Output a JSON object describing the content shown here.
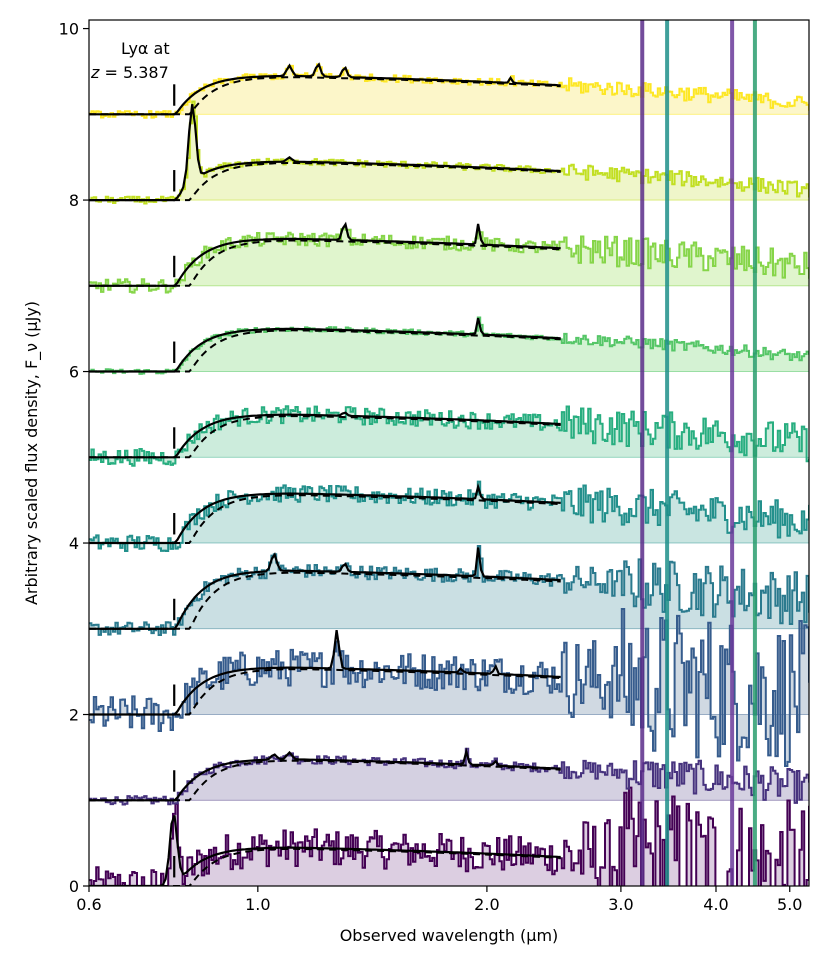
{
  "chart_data": {
    "type": "line",
    "title": "",
    "xlabel": "Observed wavelength (μm)",
    "ylabel": "Arbitrary scaled flux density, F_ν (μJy)",
    "xscale": "log",
    "xlim": [
      0.6,
      5.3
    ],
    "ylim": [
      0,
      10.1
    ],
    "xticks": [
      {
        "value": 0.6,
        "label": "0.6"
      },
      {
        "value": 1.0,
        "label": "1.0"
      },
      {
        "value": 2.0,
        "label": "2.0"
      },
      {
        "value": 3.0,
        "label": "3.0"
      },
      {
        "value": 4.0,
        "label": "4.0"
      },
      {
        "value": 5.0,
        "label": "5.0"
      }
    ],
    "yticks": [
      {
        "value": 0,
        "label": "0"
      },
      {
        "value": 2,
        "label": "2"
      },
      {
        "value": 4,
        "label": "4"
      },
      {
        "value": 6,
        "label": "6"
      },
      {
        "value": 8,
        "label": "8"
      },
      {
        "value": 10,
        "label": "10"
      }
    ],
    "annotation": {
      "line1": "Lyα at",
      "line2_var": "z",
      "line2_rest": " = 5.387",
      "lyman_alpha_wavelength": 0.7765
    },
    "series": [
      {
        "name": "spectrum-0",
        "offset": 0,
        "color": "#440154",
        "fill": "#d6c6dc",
        "level": 0.45,
        "break": 0.78,
        "noise": 0.22,
        "lines": [
          [
            0.775,
            0.85
          ]
        ],
        "fit_end": 2.5
      },
      {
        "name": "spectrum-1",
        "offset": 1,
        "color": "#47337e",
        "fill": "#cdc8dc",
        "level": 0.48,
        "break": 0.78,
        "noise": 0.05,
        "lines": [
          [
            1.05,
            0.06
          ],
          [
            1.1,
            0.08
          ],
          [
            1.88,
            0.15
          ],
          [
            2.05,
            0.06
          ]
        ],
        "fit_end": 2.5
      },
      {
        "name": "spectrum-2",
        "offset": 2,
        "color": "#365c8d",
        "fill": "#c8d2dd",
        "level": 0.55,
        "break": 0.78,
        "noise": 0.22,
        "lines": [
          [
            1.27,
            0.45
          ],
          [
            1.85,
            0.05
          ],
          [
            2.05,
            0.1
          ]
        ],
        "fit_end": 2.5
      },
      {
        "name": "spectrum-3",
        "offset": 3,
        "color": "#2b7a8e",
        "fill": "#c1d9de",
        "level": 0.68,
        "break": 0.78,
        "noise": 0.08,
        "lines": [
          [
            1.05,
            0.2
          ],
          [
            1.3,
            0.1
          ],
          [
            1.95,
            0.35
          ]
        ],
        "fit_end": 2.5
      },
      {
        "name": "spectrum-4",
        "offset": 4,
        "color": "#23908c",
        "fill": "#bfe1dc",
        "level": 0.58,
        "break": 0.78,
        "noise": 0.1,
        "lines": [
          [
            1.95,
            0.15
          ]
        ],
        "fit_end": 2.5
      },
      {
        "name": "spectrum-5",
        "offset": 5,
        "color": "#28ae80",
        "fill": "#c3e9d6",
        "level": 0.5,
        "break": 0.78,
        "noise": 0.1,
        "lines": [
          [
            1.3,
            0.04
          ]
        ],
        "fit_end": 2.5
      },
      {
        "name": "spectrum-6",
        "offset": 6,
        "color": "#55c667",
        "fill": "#cdf0cb",
        "level": 0.5,
        "break": 0.78,
        "noise": 0.03,
        "lines": [
          [
            1.95,
            0.2
          ]
        ],
        "fit_end": 2.5
      },
      {
        "name": "spectrum-7",
        "offset": 7,
        "color": "#86d549",
        "fill": "#dbf3c4",
        "level": 0.55,
        "break": 0.78,
        "noise": 0.08,
        "lines": [
          [
            1.3,
            0.2
          ],
          [
            1.95,
            0.25
          ]
        ],
        "fit_end": 2.5
      },
      {
        "name": "spectrum-8",
        "offset": 8,
        "color": "#c2df23",
        "fill": "#ecf5bf",
        "level": 0.45,
        "break": 0.78,
        "noise": 0.04,
        "lines": [
          [
            0.82,
            0.9
          ],
          [
            1.1,
            0.05
          ]
        ],
        "fit_end": 2.5
      },
      {
        "name": "spectrum-9",
        "offset": 9,
        "color": "#fde725",
        "fill": "#fcf4c0",
        "level": 0.45,
        "break": 0.78,
        "noise": 0.04,
        "lines": [
          [
            1.1,
            0.12
          ],
          [
            1.2,
            0.15
          ],
          [
            1.3,
            0.12
          ],
          [
            2.15,
            0.06
          ]
        ],
        "fit_end": 2.5
      }
    ]
  }
}
